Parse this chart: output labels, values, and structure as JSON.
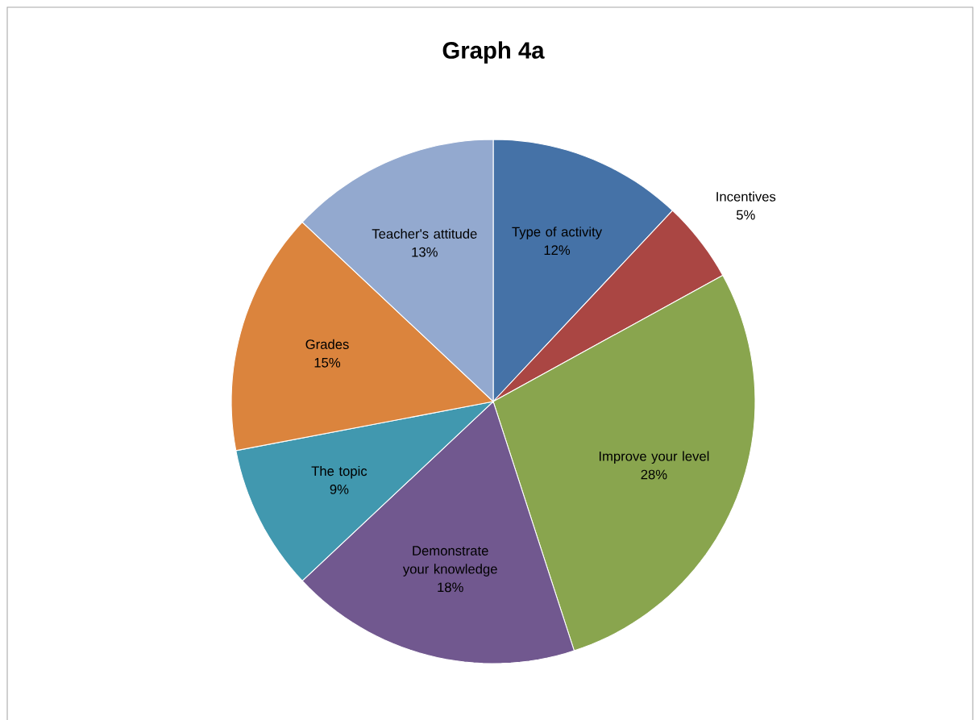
{
  "chart_data": {
    "type": "pie",
    "title": "Graph 4a",
    "categories": [
      "Type of activity",
      "Incentives",
      "Improve your level",
      "Demonstrate your knowledge",
      "The topic",
      "Grades",
      "Teacher's attitude"
    ],
    "values": [
      12,
      5,
      28,
      18,
      9,
      15,
      13
    ],
    "value_labels": [
      "12%",
      "5%",
      "28%",
      "18%",
      "9%",
      "15%",
      "13%"
    ],
    "colors": [
      "#4572a7",
      "#aa4643",
      "#89a54e",
      "#71588f",
      "#4198af",
      "#db843d",
      "#93a9cf"
    ]
  }
}
